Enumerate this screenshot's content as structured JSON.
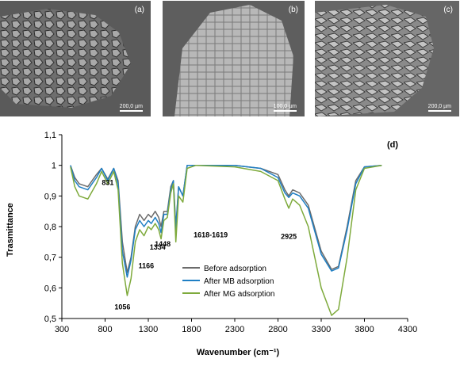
{
  "figure": {
    "panels": [
      {
        "label": "(a)",
        "scale_bar": "200,0 µm"
      },
      {
        "label": "(b)",
        "scale_bar": "100,0 µm"
      },
      {
        "label": "(c)",
        "scale_bar": "200,0 µm"
      }
    ]
  },
  "chart_data": {
    "type": "line",
    "panel_label": "(d)",
    "xlabel": "Wavenumber (cm⁻¹)",
    "ylabel": "Trasmittance",
    "xlim": [
      300,
      4300
    ],
    "ylim": [
      0.5,
      1.1
    ],
    "x_ticks": [
      "300",
      "800",
      "1300",
      "1800",
      "2300",
      "2800",
      "3300",
      "3800",
      "4300"
    ],
    "y_ticks": [
      "0,5",
      "0,6",
      "0,7",
      "0,8",
      "0,9",
      "1",
      "1,1"
    ],
    "legend_position": "lower-center",
    "annotations": [
      {
        "text": "831",
        "x": 831,
        "y": 0.93
      },
      {
        "text": "1056",
        "x": 1056,
        "y": 0.555
      },
      {
        "text": "1166",
        "x": 1166,
        "y": 0.67
      },
      {
        "text": "1334",
        "x": 1334,
        "y": 0.715
      },
      {
        "text": "1448",
        "x": 1448,
        "y": 0.72
      },
      {
        "text": "1618-1619",
        "x": 1618,
        "y": 0.745
      },
      {
        "text": "2925",
        "x": 2925,
        "y": 0.755
      }
    ],
    "series": [
      {
        "name": "Before adsorption",
        "color": "#6b6b6b",
        "points": [
          [
            400,
            1.0
          ],
          [
            450,
            0.96
          ],
          [
            500,
            0.94
          ],
          [
            600,
            0.93
          ],
          [
            700,
            0.97
          ],
          [
            760,
            0.99
          ],
          [
            831,
            0.955
          ],
          [
            900,
            0.99
          ],
          [
            950,
            0.95
          ],
          [
            1000,
            0.75
          ],
          [
            1056,
            0.65
          ],
          [
            1100,
            0.7
          ],
          [
            1150,
            0.8
          ],
          [
            1200,
            0.84
          ],
          [
            1250,
            0.82
          ],
          [
            1300,
            0.84
          ],
          [
            1334,
            0.83
          ],
          [
            1380,
            0.85
          ],
          [
            1420,
            0.83
          ],
          [
            1448,
            0.8
          ],
          [
            1480,
            0.85
          ],
          [
            1520,
            0.85
          ],
          [
            1560,
            0.93
          ],
          [
            1590,
            0.95
          ],
          [
            1618,
            0.8
          ],
          [
            1650,
            0.93
          ],
          [
            1700,
            0.9
          ],
          [
            1750,
            1.0
          ],
          [
            1850,
            1.0
          ],
          [
            2300,
            1.0
          ],
          [
            2600,
            0.99
          ],
          [
            2800,
            0.97
          ],
          [
            2880,
            0.92
          ],
          [
            2925,
            0.9
          ],
          [
            2970,
            0.92
          ],
          [
            3050,
            0.91
          ],
          [
            3150,
            0.87
          ],
          [
            3300,
            0.72
          ],
          [
            3420,
            0.66
          ],
          [
            3500,
            0.67
          ],
          [
            3600,
            0.8
          ],
          [
            3700,
            0.95
          ],
          [
            3800,
            0.995
          ],
          [
            4000,
            1.0
          ]
        ]
      },
      {
        "name": "After MB adsorption",
        "color": "#1f7fc4",
        "points": [
          [
            400,
            1.0
          ],
          [
            450,
            0.95
          ],
          [
            500,
            0.93
          ],
          [
            600,
            0.92
          ],
          [
            700,
            0.96
          ],
          [
            760,
            0.99
          ],
          [
            831,
            0.95
          ],
          [
            900,
            0.99
          ],
          [
            950,
            0.94
          ],
          [
            1000,
            0.72
          ],
          [
            1056,
            0.635
          ],
          [
            1100,
            0.69
          ],
          [
            1150,
            0.79
          ],
          [
            1200,
            0.82
          ],
          [
            1250,
            0.8
          ],
          [
            1300,
            0.82
          ],
          [
            1334,
            0.81
          ],
          [
            1380,
            0.83
          ],
          [
            1420,
            0.81
          ],
          [
            1448,
            0.78
          ],
          [
            1480,
            0.84
          ],
          [
            1520,
            0.84
          ],
          [
            1560,
            0.92
          ],
          [
            1590,
            0.95
          ],
          [
            1618,
            0.79
          ],
          [
            1650,
            0.93
          ],
          [
            1700,
            0.9
          ],
          [
            1750,
            1.0
          ],
          [
            1850,
            1.0
          ],
          [
            2300,
            1.0
          ],
          [
            2600,
            0.99
          ],
          [
            2800,
            0.96
          ],
          [
            2880,
            0.91
          ],
          [
            2925,
            0.895
          ],
          [
            2970,
            0.91
          ],
          [
            3050,
            0.9
          ],
          [
            3150,
            0.86
          ],
          [
            3300,
            0.71
          ],
          [
            3420,
            0.655
          ],
          [
            3500,
            0.665
          ],
          [
            3600,
            0.79
          ],
          [
            3700,
            0.94
          ],
          [
            3800,
            0.995
          ],
          [
            4000,
            1.0
          ]
        ]
      },
      {
        "name": "After MG adsorption",
        "color": "#7eaa3c",
        "points": [
          [
            400,
            0.995
          ],
          [
            450,
            0.93
          ],
          [
            500,
            0.9
          ],
          [
            600,
            0.89
          ],
          [
            700,
            0.94
          ],
          [
            760,
            0.98
          ],
          [
            831,
            0.94
          ],
          [
            900,
            0.98
          ],
          [
            950,
            0.92
          ],
          [
            1000,
            0.68
          ],
          [
            1056,
            0.575
          ],
          [
            1100,
            0.63
          ],
          [
            1150,
            0.75
          ],
          [
            1200,
            0.79
          ],
          [
            1250,
            0.77
          ],
          [
            1300,
            0.8
          ],
          [
            1334,
            0.79
          ],
          [
            1380,
            0.81
          ],
          [
            1420,
            0.79
          ],
          [
            1448,
            0.76
          ],
          [
            1480,
            0.82
          ],
          [
            1520,
            0.83
          ],
          [
            1560,
            0.91
          ],
          [
            1590,
            0.94
          ],
          [
            1618,
            0.75
          ],
          [
            1650,
            0.9
          ],
          [
            1700,
            0.88
          ],
          [
            1750,
            0.99
          ],
          [
            1850,
            1.0
          ],
          [
            2300,
            0.995
          ],
          [
            2600,
            0.98
          ],
          [
            2800,
            0.95
          ],
          [
            2880,
            0.89
          ],
          [
            2925,
            0.86
          ],
          [
            2970,
            0.89
          ],
          [
            3050,
            0.87
          ],
          [
            3150,
            0.8
          ],
          [
            3300,
            0.6
          ],
          [
            3420,
            0.51
          ],
          [
            3500,
            0.53
          ],
          [
            3600,
            0.7
          ],
          [
            3700,
            0.92
          ],
          [
            3800,
            0.99
          ],
          [
            4000,
            1.0
          ]
        ]
      }
    ]
  }
}
